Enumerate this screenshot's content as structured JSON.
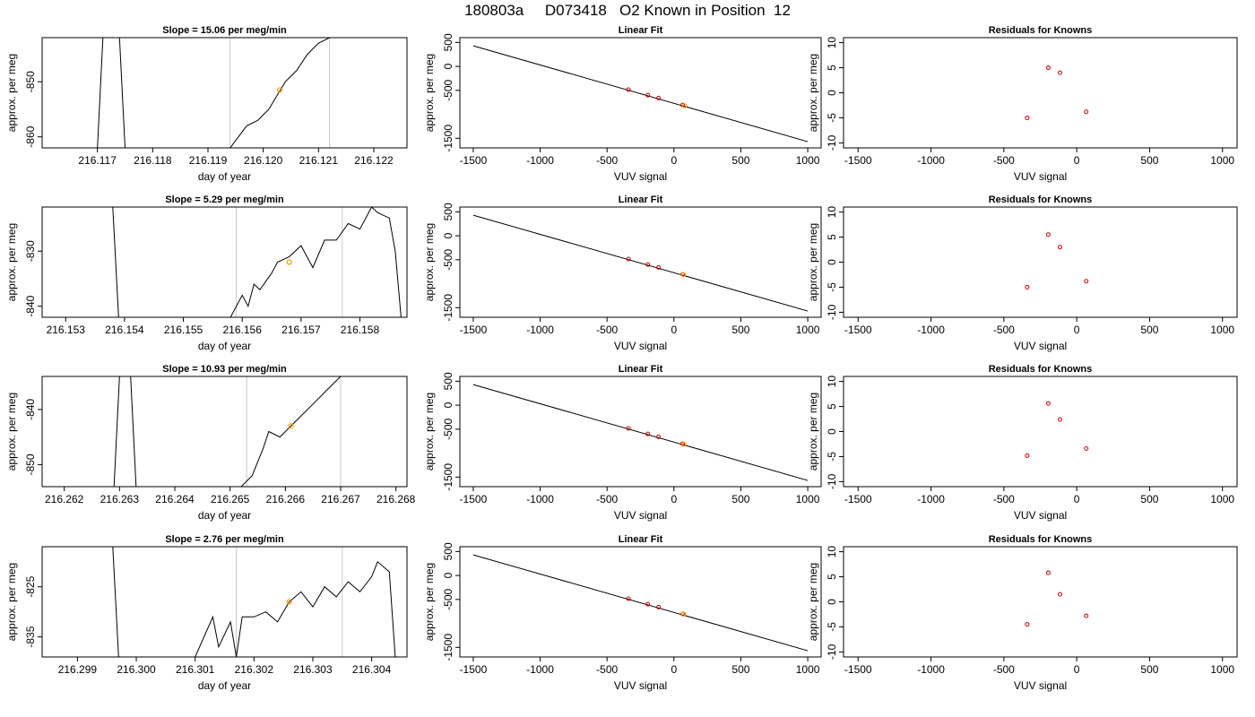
{
  "title": "180803a     D073418   O2 Known in Position  12",
  "chart_data": [
    {
      "panel": "time-series-row-1",
      "type": "line",
      "title": "Slope =  15.06  per meg/min",
      "xlabel": "day of year",
      "ylabel": "approx. per meg",
      "xlim": [
        216.116,
        216.1226
      ],
      "ylim": [
        -862,
        -842
      ],
      "xticks": [
        "216.117",
        "216.118",
        "216.119",
        "216.120",
        "216.121",
        "216.122"
      ],
      "yticks": [
        "-850",
        "-860"
      ],
      "vlines": [
        216.1194,
        216.1212
      ],
      "point": {
        "x": 216.1203,
        "y": -851.5
      },
      "series": [
        {
          "x": [
            216.117,
            216.1171,
            216.1174,
            216.1175,
            216.1194,
            216.1197,
            216.1199,
            216.1201,
            216.1204,
            216.1206,
            216.1208,
            216.121,
            216.1212
          ],
          "y": [
            -862,
            -842,
            -842,
            -862,
            -862,
            -858,
            -857,
            -855,
            -850,
            -848,
            -845,
            -843,
            -842
          ]
        }
      ]
    },
    {
      "panel": "linear-fit-row-1",
      "type": "scatter",
      "title": "Linear Fit",
      "xlabel": "VUV signal",
      "ylabel": "approx. per meg",
      "xlim": [
        -1600,
        1100
      ],
      "ylim": [
        -1700,
        600
      ],
      "xticks": [
        "-1500",
        "-1000",
        "-500",
        "0",
        "500",
        "1000"
      ],
      "yticks": [
        "500",
        "0",
        "-500",
        "-1500"
      ],
      "line": {
        "x": [
          -1500,
          1000
        ],
        "y": [
          430,
          -1570
        ]
      },
      "points": [
        {
          "x": -340,
          "y": -485
        },
        {
          "x": -195,
          "y": -600
        },
        {
          "x": -115,
          "y": -660
        },
        {
          "x": 65,
          "y": -805
        }
      ],
      "highlight": {
        "x": 80,
        "y": -820
      }
    },
    {
      "panel": "residuals-row-1",
      "type": "scatter",
      "title": "Residuals for Knowns",
      "xlabel": "VUV signal",
      "ylabel": "approx. per meg",
      "xlim": [
        -1600,
        1100
      ],
      "ylim": [
        -11,
        11
      ],
      "xticks": [
        "-1500",
        "-1000",
        "-500",
        "0",
        "500",
        "1000"
      ],
      "yticks": [
        "10",
        "5",
        "0",
        "-5",
        "-10"
      ],
      "points": [
        {
          "x": -340,
          "y": -5
        },
        {
          "x": -195,
          "y": 5
        },
        {
          "x": -115,
          "y": 4
        },
        {
          "x": 65,
          "y": -3.8
        }
      ]
    },
    {
      "panel": "time-series-row-2",
      "type": "line",
      "title": "Slope =  5.29  per meg/min",
      "xlabel": "day of year",
      "ylabel": "approx. per meg",
      "xlim": [
        216.1526,
        216.1588
      ],
      "ylim": [
        -842,
        -822
      ],
      "xticks": [
        "216.153",
        "216.154",
        "216.155",
        "216.156",
        "216.157",
        "216.158"
      ],
      "yticks": [
        "-830",
        "-840"
      ],
      "vlines": [
        216.1559,
        216.1577
      ],
      "point": {
        "x": 216.1568,
        "y": -832
      },
      "series": [
        {
          "x": [
            216.1538,
            216.1539,
            216.1542,
            216.1558,
            216.156,
            216.1561,
            216.1562,
            216.1563,
            216.1565,
            216.1566,
            216.1568,
            216.157,
            216.1572,
            216.1574,
            216.1576,
            216.1578,
            216.158,
            216.1582,
            216.1583,
            216.1585,
            216.1586,
            216.1587
          ],
          "y": [
            -822,
            -842,
            -842,
            -842,
            -838,
            -840,
            -836,
            -837,
            -834,
            -832,
            -831,
            -829,
            -833,
            -828,
            -828,
            -825,
            -826,
            -822,
            -823,
            -824,
            -830,
            -842
          ]
        }
      ]
    },
    {
      "panel": "linear-fit-row-2",
      "type": "scatter",
      "title": "Linear Fit",
      "xlabel": "VUV signal",
      "ylabel": "approx. per meg",
      "xlim": [
        -1600,
        1100
      ],
      "ylim": [
        -1700,
        600
      ],
      "xticks": [
        "-1500",
        "-1000",
        "-500",
        "0",
        "500",
        "1000"
      ],
      "yticks": [
        "500",
        "0",
        "-500",
        "-1500"
      ],
      "line": {
        "x": [
          -1500,
          1000
        ],
        "y": [
          430,
          -1570
        ]
      },
      "points": [
        {
          "x": -340,
          "y": -485
        },
        {
          "x": -195,
          "y": -600
        },
        {
          "x": -115,
          "y": -660
        },
        {
          "x": 65,
          "y": -805
        }
      ],
      "highlight": {
        "x": 70,
        "y": -810
      }
    },
    {
      "panel": "residuals-row-2",
      "type": "scatter",
      "title": "Residuals for Knowns",
      "xlabel": "VUV signal",
      "ylabel": "approx. per meg",
      "xlim": [
        -1600,
        1100
      ],
      "ylim": [
        -11,
        11
      ],
      "xticks": [
        "-1500",
        "-1000",
        "-500",
        "0",
        "500",
        "1000"
      ],
      "yticks": [
        "10",
        "5",
        "0",
        "-5",
        "-10"
      ],
      "points": [
        {
          "x": -340,
          "y": -5
        },
        {
          "x": -195,
          "y": 5.5
        },
        {
          "x": -115,
          "y": 3
        },
        {
          "x": 65,
          "y": -3.8
        }
      ]
    },
    {
      "panel": "time-series-row-3",
      "type": "line",
      "title": "Slope =  10.93  per meg/min",
      "xlabel": "day of year",
      "ylabel": "approx. per meg",
      "xlim": [
        216.2616,
        216.2682
      ],
      "ylim": [
        -854,
        -834
      ],
      "xticks": [
        "216.262",
        "216.263",
        "216.264",
        "216.265",
        "216.266",
        "216.267",
        "216.268"
      ],
      "yticks": [
        "-840",
        "-850"
      ],
      "vlines": [
        216.2653,
        216.267
      ],
      "point": {
        "x": 216.2661,
        "y": -843
      },
      "series": [
        {
          "x": [
            216.2629,
            216.263,
            216.2632,
            216.2633,
            216.2652,
            216.2654,
            216.2656,
            216.2657,
            216.2659,
            216.2661,
            216.2663,
            216.2665,
            216.2667,
            216.2669,
            216.267
          ],
          "y": [
            -854,
            -834,
            -834,
            -854,
            -854,
            -852,
            -847,
            -844,
            -845,
            -843,
            -841,
            -839,
            -837,
            -835,
            -834
          ]
        }
      ]
    },
    {
      "panel": "linear-fit-row-3",
      "type": "scatter",
      "title": "Linear Fit",
      "xlabel": "VUV signal",
      "ylabel": "approx. per meg",
      "xlim": [
        -1600,
        1100
      ],
      "ylim": [
        -1700,
        600
      ],
      "xticks": [
        "-1500",
        "-1000",
        "-500",
        "0",
        "500",
        "1000"
      ],
      "yticks": [
        "500",
        "0",
        "-500",
        "-1500"
      ],
      "line": {
        "x": [
          -1500,
          1000
        ],
        "y": [
          430,
          -1570
        ]
      },
      "points": [
        {
          "x": -340,
          "y": -485
        },
        {
          "x": -195,
          "y": -600
        },
        {
          "x": -115,
          "y": -660
        },
        {
          "x": 65,
          "y": -805
        }
      ],
      "highlight": {
        "x": 75,
        "y": -815
      }
    },
    {
      "panel": "residuals-row-3",
      "type": "scatter",
      "title": "Residuals for Knowns",
      "xlabel": "VUV signal",
      "ylabel": "approx. per meg",
      "xlim": [
        -1600,
        1100
      ],
      "ylim": [
        -11,
        11
      ],
      "xticks": [
        "-1500",
        "-1000",
        "-500",
        "0",
        "500",
        "1000"
      ],
      "yticks": [
        "10",
        "5",
        "0",
        "-5",
        "-10"
      ],
      "points": [
        {
          "x": -340,
          "y": -4.8
        },
        {
          "x": -195,
          "y": 5.6
        },
        {
          "x": -115,
          "y": 2.4
        },
        {
          "x": 65,
          "y": -3.4
        }
      ]
    },
    {
      "panel": "time-series-row-4",
      "type": "line",
      "title": "Slope =  2.76  per meg/min",
      "xlabel": "day of year",
      "ylabel": "approx. per meg",
      "xlim": [
        216.2984,
        216.3046
      ],
      "ylim": [
        -839,
        -817
      ],
      "xticks": [
        "216.299",
        "216.300",
        "216.301",
        "216.302",
        "216.303",
        "216.304"
      ],
      "yticks": [
        "-825",
        "-835"
      ],
      "vlines": [
        216.3017,
        216.3035
      ],
      "point": {
        "x": 216.3026,
        "y": -828
      },
      "series": [
        {
          "x": [
            216.2996,
            216.2997,
            216.301,
            216.3013,
            216.3014,
            216.3016,
            216.3017,
            216.3018,
            216.302,
            216.3022,
            216.3024,
            216.3026,
            216.3028,
            216.303,
            216.3032,
            216.3034,
            216.3036,
            216.3038,
            216.304,
            216.3041,
            216.3042,
            216.3043,
            216.3044
          ],
          "y": [
            -817,
            -839,
            -839,
            -831,
            -837,
            -832,
            -839,
            -831,
            -831,
            -830,
            -832,
            -828,
            -826,
            -829,
            -825,
            -827,
            -824,
            -826,
            -823,
            -820,
            -821,
            -822,
            -839
          ]
        }
      ]
    },
    {
      "panel": "linear-fit-row-4",
      "type": "scatter",
      "title": "Linear Fit",
      "xlabel": "VUV signal",
      "ylabel": "approx. per meg",
      "xlim": [
        -1600,
        1100
      ],
      "ylim": [
        -1700,
        600
      ],
      "xticks": [
        "-1500",
        "-1000",
        "-500",
        "0",
        "500",
        "1000"
      ],
      "yticks": [
        "500",
        "0",
        "-500",
        "-1500"
      ],
      "line": {
        "x": [
          -1500,
          1000
        ],
        "y": [
          430,
          -1570
        ]
      },
      "points": [
        {
          "x": -340,
          "y": -485
        },
        {
          "x": -195,
          "y": -600
        },
        {
          "x": -115,
          "y": -660
        },
        {
          "x": 65,
          "y": -805
        }
      ],
      "highlight": {
        "x": 70,
        "y": -805
      }
    },
    {
      "panel": "residuals-row-4",
      "type": "scatter",
      "title": "Residuals for Knowns",
      "xlabel": "VUV signal",
      "ylabel": "approx. per meg",
      "xlim": [
        -1600,
        1100
      ],
      "ylim": [
        -11,
        11
      ],
      "xticks": [
        "-1500",
        "-1000",
        "-500",
        "0",
        "500",
        "1000"
      ],
      "yticks": [
        "10",
        "5",
        "0",
        "-5",
        "-10"
      ],
      "points": [
        {
          "x": -340,
          "y": -4.5
        },
        {
          "x": -195,
          "y": 5.8
        },
        {
          "x": -115,
          "y": 1.5
        },
        {
          "x": 65,
          "y": -2.8
        }
      ]
    }
  ],
  "colors": {
    "line": "#000000",
    "vline": "#c8c8c8",
    "point_orange": "#ff9900",
    "point_red": "#cc0000"
  }
}
